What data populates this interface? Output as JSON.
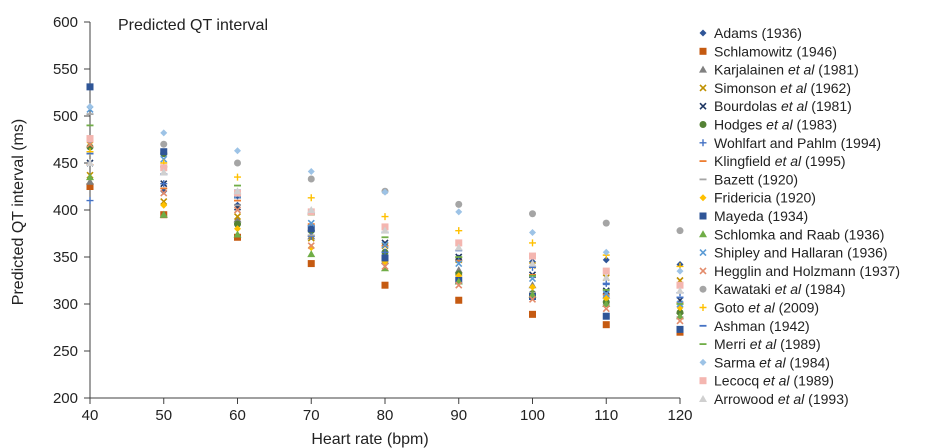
{
  "chart_data": {
    "type": "scatter",
    "title": "Predicted QT interval",
    "xlabel": "Heart rate (bpm)",
    "ylabel": "Predicted QT interval (ms)",
    "xlim": [
      40,
      120
    ],
    "ylim": [
      200,
      600
    ],
    "x_ticks": [
      "40",
      "50",
      "60",
      "70",
      "80",
      "90",
      "100",
      "110",
      "120"
    ],
    "y_ticks": [
      "200",
      "250",
      "300",
      "350",
      "400",
      "450",
      "500",
      "550",
      "600"
    ],
    "grid": false,
    "legend_position": "right",
    "x": [
      40,
      50,
      60,
      70,
      80,
      90,
      100,
      110,
      120
    ],
    "series": [
      {
        "name": "Adams (1936)",
        "name_parts": [
          {
            "t": "Adams (1936)",
            "i": false
          }
        ],
        "marker": "diamond",
        "color": "#2f5597",
        "values": [
          425,
          420,
          405,
          372,
          355,
          349,
          345,
          347,
          342
        ]
      },
      {
        "name": "Schlamowitz (1946)",
        "name_parts": [
          {
            "t": "Schlamowitz (1946)",
            "i": false
          }
        ],
        "marker": "square",
        "color": "#c55a11",
        "values": [
          425,
          395,
          371,
          343,
          320,
          304,
          289,
          278,
          270
        ]
      },
      {
        "name": "Karjalainen et al (1981)",
        "name_parts": [
          {
            "t": "Karjalainen ",
            "i": false
          },
          {
            "t": "et al",
            "i": true
          },
          {
            "t": " (1981)",
            "i": false
          }
        ],
        "marker": "triangle",
        "color": "#808080",
        "values": [
          430,
          395,
          390,
          372,
          346,
          336,
          320,
          309,
          293
        ]
      },
      {
        "name": "Simonson et al (1962)",
        "name_parts": [
          {
            "t": "Simonson ",
            "i": false
          },
          {
            "t": "et al",
            "i": true
          },
          {
            "t": " (1962)",
            "i": false
          }
        ],
        "marker": "x",
        "color": "#bf9000",
        "values": [
          437,
          409,
          393,
          370,
          362,
          347,
          341,
          328,
          325
        ]
      },
      {
        "name": "Bourdolas et al (1981)",
        "name_parts": [
          {
            "t": "Bourdolas ",
            "i": false
          },
          {
            "t": "et al",
            "i": true
          },
          {
            "t": " (1981)",
            "i": false
          }
        ],
        "marker": "x",
        "color": "#203864",
        "values": [
          450,
          428,
          403,
          381,
          365,
          350,
          331,
          314,
          304
        ]
      },
      {
        "name": "Hodges et al (1983)",
        "name_parts": [
          {
            "t": "Hodges ",
            "i": false
          },
          {
            "t": "et al",
            "i": true
          },
          {
            "t": " (1983)",
            "i": false
          }
        ],
        "marker": "circle",
        "color": "#548235",
        "values": [
          467,
          460,
          385,
          378,
          355,
          332,
          311,
          302,
          291
        ]
      },
      {
        "name": "Wohlfart and Pahlm (1994)",
        "name_parts": [
          {
            "t": "Wohlfart and Pahlm (1994)",
            "i": false
          }
        ],
        "marker": "plus",
        "color": "#4472c4",
        "values": [
          410,
          428,
          415,
          372,
          355,
          346,
          339,
          322,
          312
        ]
      },
      {
        "name": "Klingfield et al (1995)",
        "name_parts": [
          {
            "t": "Klingfield ",
            "i": false
          },
          {
            "t": "et al",
            "i": true
          },
          {
            "t": " (1995)",
            "i": false
          }
        ],
        "marker": "dash",
        "color": "#ed7d31",
        "values": [
          448,
          423,
          410,
          385,
          362,
          346,
          331,
          310,
          301
        ]
      },
      {
        "name": "Bazett (1920)",
        "name_parts": [
          {
            "t": "Bazett (1920)",
            "i": false
          }
        ],
        "marker": "dash",
        "color": "#a5a5a5",
        "values": [
          502,
          438,
          405,
          373,
          350,
          330,
          312,
          299,
          286
        ]
      },
      {
        "name": "Fridericia (1920)",
        "name_parts": [
          {
            "t": "Fridericia (1920)",
            "i": false
          }
        ],
        "marker": "diamond",
        "color": "#ffc000",
        "values": [
          472,
          405,
          380,
          360,
          345,
          330,
          318,
          306,
          296
        ]
      },
      {
        "name": "Mayeda (1934)",
        "name_parts": [
          {
            "t": "Mayeda (1934)",
            "i": false
          }
        ],
        "marker": "square",
        "color": "#2f5597",
        "values": [
          531,
          462,
          416,
          380,
          349,
          325,
          308,
          287,
          273
        ]
      },
      {
        "name": "Schlomka and Raab (1936)",
        "name_parts": [
          {
            "t": "Schlomka and Raab (1936)",
            "i": false
          }
        ],
        "marker": "triangle",
        "color": "#70ad47",
        "values": [
          435,
          395,
          374,
          353,
          338,
          324,
          310,
          300,
          287
        ]
      },
      {
        "name": "Shipley and Hallaran (1936)",
        "name_parts": [
          {
            "t": "Shipley and Hallaran (1936)",
            "i": false
          }
        ],
        "marker": "x",
        "color": "#5b9bd5",
        "values": [
          507,
          454,
          416,
          386,
          363,
          343,
          327,
          311,
          300
        ]
      },
      {
        "name": "Hegglin and Holzmann (1937)",
        "name_parts": [
          {
            "t": "Hegglin and Holzmann (1937)",
            "i": false
          }
        ],
        "marker": "x",
        "color": "#e38b6b",
        "values": [
          470,
          418,
          400,
          362,
          340,
          320,
          305,
          295,
          282
        ]
      },
      {
        "name": "Kawataki et al (1984)",
        "name_parts": [
          {
            "t": "Kawataki ",
            "i": false
          },
          {
            "t": "et al",
            "i": true
          },
          {
            "t": " (1984)",
            "i": false
          }
        ],
        "marker": "circle",
        "color": "#a5a5a5",
        "values": [
          475,
          470,
          450,
          433,
          420,
          406,
          396,
          386,
          378
        ]
      },
      {
        "name": "Goto et al (2009)",
        "name_parts": [
          {
            "t": "Goto ",
            "i": false
          },
          {
            "t": "et al",
            "i": true
          },
          {
            "t": " (2009)",
            "i": false
          }
        ],
        "marker": "plus",
        "color": "#ffc000",
        "values": [
          462,
          450,
          435,
          413,
          393,
          378,
          365,
          352,
          340
        ]
      },
      {
        "name": "Ashman (1942)",
        "name_parts": [
          {
            "t": "Ashman (1942)",
            "i": false
          }
        ],
        "marker": "dash",
        "color": "#4472c4",
        "values": [
          460,
          438,
          421,
          396,
          376,
          357,
          340,
          321,
          307
        ]
      },
      {
        "name": "Merri et al (1989)",
        "name_parts": [
          {
            "t": "Merri ",
            "i": false
          },
          {
            "t": "et al",
            "i": true
          },
          {
            "t": " (1989)",
            "i": false
          }
        ],
        "marker": "dash",
        "color": "#70ad47",
        "values": [
          490,
          446,
          426,
          395,
          371,
          350,
          330,
          315,
          300
        ]
      },
      {
        "name": "Sarma et al (1984)",
        "name_parts": [
          {
            "t": "Sarma ",
            "i": false
          },
          {
            "t": "et al",
            "i": true
          },
          {
            "t": " (1984)",
            "i": false
          }
        ],
        "marker": "diamond",
        "color": "#9dc3e6",
        "values": [
          510,
          482,
          463,
          441,
          419,
          398,
          376,
          355,
          335
        ]
      },
      {
        "name": "Lecocq et al (1989)",
        "name_parts": [
          {
            "t": "Lecocq ",
            "i": false
          },
          {
            "t": "et al",
            "i": true
          },
          {
            "t": " (1989)",
            "i": false
          }
        ],
        "marker": "square",
        "color": "#f4b6b0",
        "values": [
          476,
          445,
          418,
          398,
          382,
          365,
          351,
          335,
          320
        ]
      },
      {
        "name": "Arrowood et al (1993)",
        "name_parts": [
          {
            "t": "Arrowood ",
            "i": false
          },
          {
            "t": "et al",
            "i": true
          },
          {
            "t": " (1993)",
            "i": false
          }
        ],
        "marker": "triangle",
        "color": "#d0d0d0",
        "values": [
          450,
          440,
          420,
          400,
          378,
          360,
          343,
          328,
          314
        ]
      }
    ]
  }
}
